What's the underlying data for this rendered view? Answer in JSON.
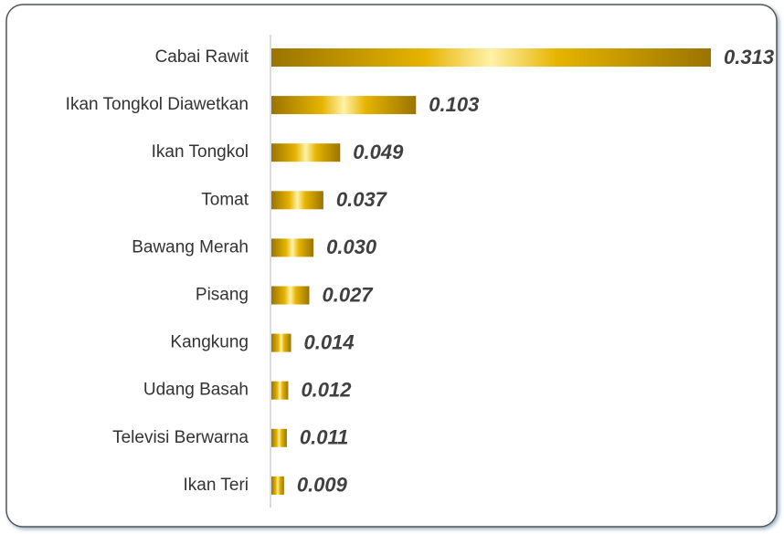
{
  "chart_data": {
    "type": "bar",
    "orientation": "horizontal",
    "categories": [
      "Cabai Rawit",
      "Ikan Tongkol Diawetkan",
      "Ikan Tongkol",
      "Tomat",
      "Bawang Merah",
      "Pisang",
      "Kangkung",
      "Udang Basah",
      "Televisi Berwarna",
      "Ikan Teri"
    ],
    "values": [
      0.313,
      0.103,
      0.049,
      0.037,
      0.03,
      0.027,
      0.014,
      0.012,
      0.011,
      0.009
    ],
    "value_labels": [
      "0.313",
      "0.103",
      "0.049",
      "0.037",
      "0.030",
      "0.027",
      "0.014",
      "0.012",
      "0.011",
      "0.009"
    ],
    "color": "#e6b400"
  }
}
